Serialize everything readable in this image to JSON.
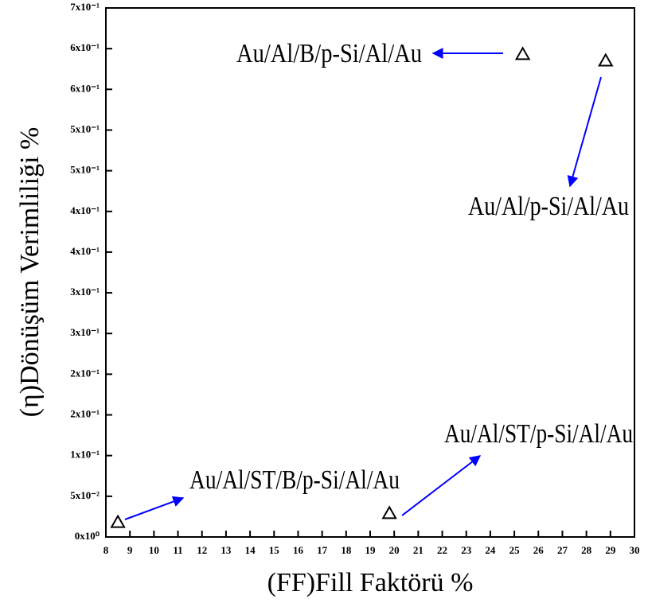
{
  "chart_data": {
    "type": "scatter",
    "x_label": "(FF)Fill Faktörü %",
    "y_label": "(η)Dönüşüm Verimliliği %",
    "x": [
      8.5,
      19.8,
      25.35,
      28.8
    ],
    "values": [
      0.018,
      0.029,
      0.593,
      0.585
    ],
    "color": "#000000",
    "marker": "triangle",
    "xlim": [
      8,
      30
    ],
    "xticks": [
      8,
      9,
      10,
      11,
      12,
      13,
      14,
      15,
      16,
      17,
      18,
      19,
      20,
      21,
      22,
      23,
      24,
      25,
      26,
      27,
      28,
      29,
      30
    ],
    "ylim": [
      0,
      0.65
    ],
    "yticks": [
      {
        "value": 0,
        "label": "0x10⁰"
      },
      {
        "value": 0.05,
        "label": "5x10⁻²"
      },
      {
        "value": 0.1,
        "label": "1x10⁻¹"
      },
      {
        "value": 0.15,
        "label": "2x10⁻¹"
      },
      {
        "value": 0.2,
        "label": "2x10⁻¹"
      },
      {
        "value": 0.25,
        "label": "3x10⁻¹"
      },
      {
        "value": 0.3,
        "label": "3x10⁻¹"
      },
      {
        "value": 0.35,
        "label": "4x10⁻¹"
      },
      {
        "value": 0.4,
        "label": "4x10⁻¹"
      },
      {
        "value": 0.45,
        "label": "5x10⁻¹"
      },
      {
        "value": 0.5,
        "label": "5x10⁻¹"
      },
      {
        "value": 0.55,
        "label": "6x10⁻¹"
      },
      {
        "value": 0.6,
        "label": "6x10⁻¹"
      },
      {
        "value": 0.65,
        "label": "7x10⁻¹"
      }
    ],
    "annotations": [
      "Au/Al/ST/B/p-Si/Al/Au",
      "Au/Al/ST/p-Si/Al/Au",
      "Au/Al/B/p-Si/Al/Au",
      "Au/Al/p-Si/Al/Au"
    ],
    "annotation_color": "#0000ff"
  }
}
